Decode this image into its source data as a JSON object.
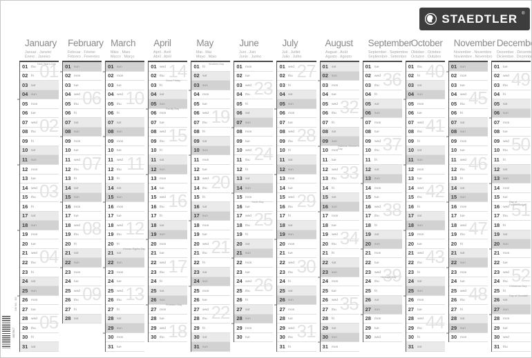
{
  "logo": {
    "brand": "STAEDTLER",
    "registered": "®",
    "box_color": "#3d3d3d"
  },
  "print_marks": {
    "barcode_digits": "4007817",
    "side_code": "640 W1 · DS"
  },
  "colors": {
    "saturday_row": "#eaeaea",
    "sunday_row": "#d2d2d2",
    "week_number": "#e2e2e2",
    "grid_border": "#474747"
  },
  "weekday_names": [
    "mon",
    "tue",
    "wed",
    "thu",
    "fri",
    "sat",
    "sun"
  ],
  "months": [
    {
      "name": "January",
      "sub1": "Januar . Janvier",
      "sub2": "Enero . Janeiro",
      "days": 31,
      "start": 3,
      "weeks": [
        {
          "label": "01",
          "day": 1
        },
        {
          "label": "02",
          "day": 7
        },
        {
          "label": "03",
          "day": 14
        },
        {
          "label": "04",
          "day": 21
        },
        {
          "label": "05",
          "day": 28
        }
      ],
      "holidays": [
        {
          "day": 1,
          "label": "New Year's Day"
        }
      ]
    },
    {
      "name": "February",
      "sub1": "Februar . Février",
      "sub2": "Febrero . Fevereiro",
      "days": 28,
      "start": 6,
      "weeks": [
        {
          "label": "06",
          "day": 4
        },
        {
          "label": "07",
          "day": 11
        },
        {
          "label": "08",
          "day": 18
        },
        {
          "label": "09",
          "day": 25
        }
      ],
      "holidays": []
    },
    {
      "name": "March",
      "sub1": "März . Mars",
      "sub2": "Marzo . Março",
      "days": 31,
      "start": 6,
      "weeks": [
        {
          "label": "10",
          "day": 4
        },
        {
          "label": "11",
          "day": 11
        },
        {
          "label": "12",
          "day": 18
        },
        {
          "label": "13",
          "day": 25
        }
      ],
      "holidays": [
        {
          "day": 21,
          "label": "Human Rights Day"
        }
      ]
    },
    {
      "name": "April",
      "sub1": "April . Avril",
      "sub2": "Abril . Abril",
      "days": 30,
      "start": 2,
      "weeks": [
        {
          "label": "14",
          "day": 1
        },
        {
          "label": "15",
          "day": 8
        },
        {
          "label": "16",
          "day": 15
        },
        {
          "label": "17",
          "day": 22
        },
        {
          "label": "18",
          "day": 29
        }
      ],
      "holidays": [
        {
          "day": 3,
          "label": "Good Friday"
        },
        {
          "day": 6,
          "label": "Family Day"
        },
        {
          "day": 27,
          "label": "Freedom Day"
        }
      ]
    },
    {
      "name": "May",
      "sub1": "Mai . Mai",
      "sub2": "Mayo . Maio",
      "days": 31,
      "start": 4,
      "weeks": [
        {
          "label": "19",
          "day": 6
        },
        {
          "label": "20",
          "day": 13
        },
        {
          "label": "21",
          "day": 20
        },
        {
          "label": "22",
          "day": 27
        }
      ],
      "holidays": [
        {
          "day": 1,
          "label": "Workers Day"
        }
      ]
    },
    {
      "name": "June",
      "sub1": "Juni . Juin",
      "sub2": "Junio . Junho",
      "days": 30,
      "start": 0,
      "weeks": [
        {
          "label": "23",
          "day": 3
        },
        {
          "label": "24",
          "day": 10
        },
        {
          "label": "25",
          "day": 17
        },
        {
          "label": "26",
          "day": 24
        }
      ],
      "holidays": [
        {
          "day": 16,
          "label": "Youth Day"
        }
      ]
    },
    {
      "name": "July",
      "sub1": "Juli . Juillet",
      "sub2": "Julio . Julho",
      "days": 31,
      "start": 2,
      "weeks": [
        {
          "label": "27",
          "day": 1
        },
        {
          "label": "28",
          "day": 8
        },
        {
          "label": "29",
          "day": 15
        },
        {
          "label": "30",
          "day": 22
        },
        {
          "label": "31",
          "day": 29
        }
      ],
      "holidays": []
    },
    {
      "name": "August",
      "sub1": "August . Août",
      "sub2": "Agosto . Agosto",
      "days": 31,
      "start": 5,
      "weeks": [
        {
          "label": "32",
          "day": 5
        },
        {
          "label": "33",
          "day": 12
        },
        {
          "label": "34",
          "day": 19
        },
        {
          "label": "35",
          "day": 26
        }
      ],
      "holidays": [
        {
          "day": 10,
          "label": "National Women's Day"
        }
      ]
    },
    {
      "name": "September",
      "sub1": "September . Septembre",
      "sub2": "Septiembre . Setembro",
      "days": 30,
      "start": 1,
      "weeks": [
        {
          "label": "36",
          "day": 2
        },
        {
          "label": "37",
          "day": 9
        },
        {
          "label": "38",
          "day": 16
        },
        {
          "label": "39",
          "day": 23
        }
      ],
      "holidays": [
        {
          "day": 24,
          "label": "Heritage Day"
        }
      ]
    },
    {
      "name": "October",
      "sub1": "Oktober . Octobre",
      "sub2": "Octubre . Outubro",
      "days": 31,
      "start": 3,
      "weeks": [
        {
          "label": "40",
          "day": 1
        },
        {
          "label": "41",
          "day": 7
        },
        {
          "label": "42",
          "day": 14
        },
        {
          "label": "43",
          "day": 21
        },
        {
          "label": "44",
          "day": 28
        }
      ],
      "holidays": []
    },
    {
      "name": "November",
      "sub1": "November . Novembre",
      "sub2": "Noviembre . Novembro",
      "days": 30,
      "start": 6,
      "weeks": [
        {
          "label": "45",
          "day": 4
        },
        {
          "label": "46",
          "day": 11
        },
        {
          "label": "47",
          "day": 18
        },
        {
          "label": "48",
          "day": 25
        }
      ],
      "holidays": []
    },
    {
      "name": "December",
      "sub1": "Dezember . Décembre",
      "sub2": "Diciembre . Dezembro",
      "days": 31,
      "start": 1,
      "weeks": [
        {
          "label": "49",
          "day": 2
        },
        {
          "label": "50",
          "day": 9
        },
        {
          "label": "51",
          "day": 16
        },
        {
          "label": "52",
          "day": 23
        }
      ],
      "holidays": [
        {
          "day": 16,
          "label": "Day of Reconciliation"
        },
        {
          "day": 25,
          "label": "Christmas Day"
        },
        {
          "day": 26,
          "label": "Day of Goodwill"
        }
      ]
    }
  ]
}
